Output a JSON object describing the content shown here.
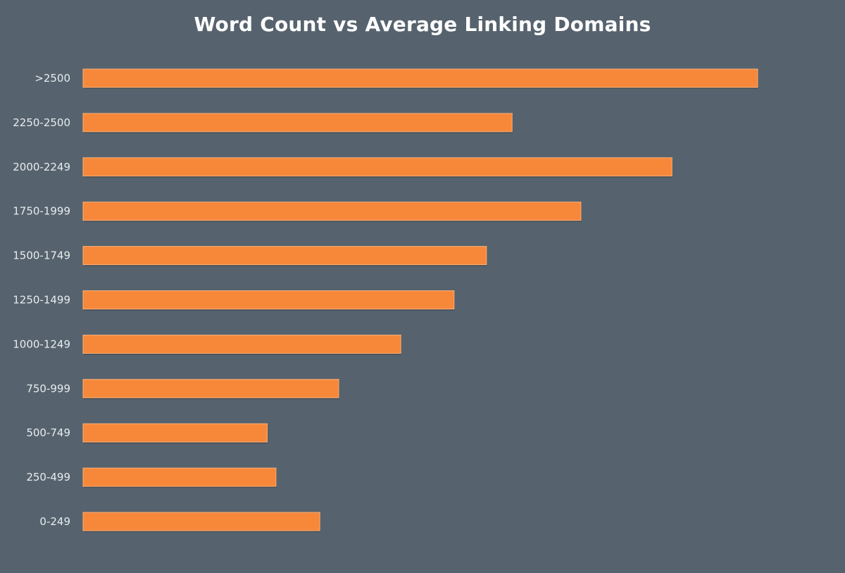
{
  "chart_data": {
    "type": "bar",
    "orientation": "horizontal",
    "title": "Word Count vs Average Linking Domains",
    "xlabel": "",
    "ylabel": "",
    "value_scale": "relative to the longest bar (=100); no axis values printed",
    "categories": [
      ">2500",
      "2250-2500",
      "2000-2249",
      "1750-1999",
      "1500-1749",
      "1250-1499",
      "1000-1249",
      "750-999",
      "500-749",
      "250-499",
      "0-249"
    ],
    "values": [
      100,
      63.6,
      87.3,
      73.8,
      59.8,
      55.0,
      47.1,
      37.9,
      27.3,
      28.6,
      35.1
    ],
    "xlim": [
      0,
      100
    ],
    "grid": false,
    "legend": "none",
    "colors": {
      "bar": "#f7883a",
      "background": "#56636e",
      "text": "#ffffff"
    }
  }
}
